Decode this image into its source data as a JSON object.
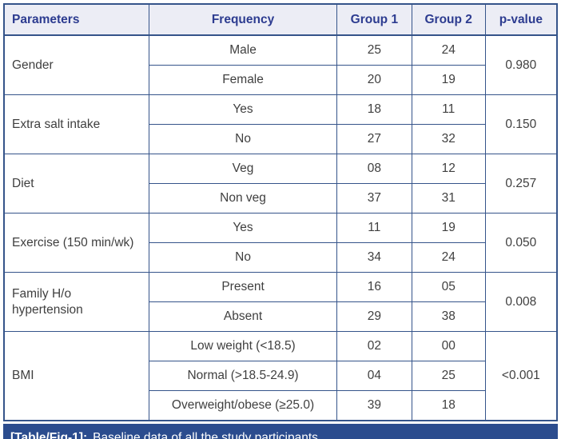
{
  "table": {
    "headers": [
      "Parameters",
      "Frequency",
      "Group 1",
      "Group 2",
      "p-value"
    ],
    "groups": [
      {
        "parameter": "Gender",
        "p_value": "0.980",
        "rows": [
          [
            "Male",
            "25",
            "24"
          ],
          [
            "Female",
            "20",
            "19"
          ]
        ]
      },
      {
        "parameter": "Extra salt intake",
        "p_value": "0.150",
        "rows": [
          [
            "Yes",
            "18",
            "11"
          ],
          [
            "No",
            "27",
            "32"
          ]
        ]
      },
      {
        "parameter": "Diet",
        "p_value": "0.257",
        "rows": [
          [
            "Veg",
            "08",
            "12"
          ],
          [
            "Non veg",
            "37",
            "31"
          ]
        ]
      },
      {
        "parameter": "Exercise (150 min/wk)",
        "p_value": "0.050",
        "rows": [
          [
            "Yes",
            "11",
            "19"
          ],
          [
            "No",
            "34",
            "24"
          ]
        ]
      },
      {
        "parameter": "Family H/o hypertension",
        "p_value": "0.008",
        "rows": [
          [
            "Present",
            "16",
            "05"
          ],
          [
            "Absent",
            "29",
            "38"
          ]
        ]
      },
      {
        "parameter": "BMI",
        "p_value": "<0.001",
        "rows": [
          [
            "Low weight (<18.5)",
            "02",
            "00"
          ],
          [
            "Normal (>18.5-24.9)",
            "04",
            "25"
          ],
          [
            "Overweight/obese (≥25.0)",
            "39",
            "18"
          ]
        ]
      }
    ],
    "caption": {
      "label": "[Table/Fig-1]:",
      "text": "Baseline data of all the study participants."
    }
  },
  "colors": {
    "header_bg": "#ecedf5",
    "header_text": "#2d3c90",
    "border": "#35548a",
    "body_text": "#3f3f3f",
    "caption_bg": "#2b4c8e",
    "caption_text": "#ffffff"
  }
}
